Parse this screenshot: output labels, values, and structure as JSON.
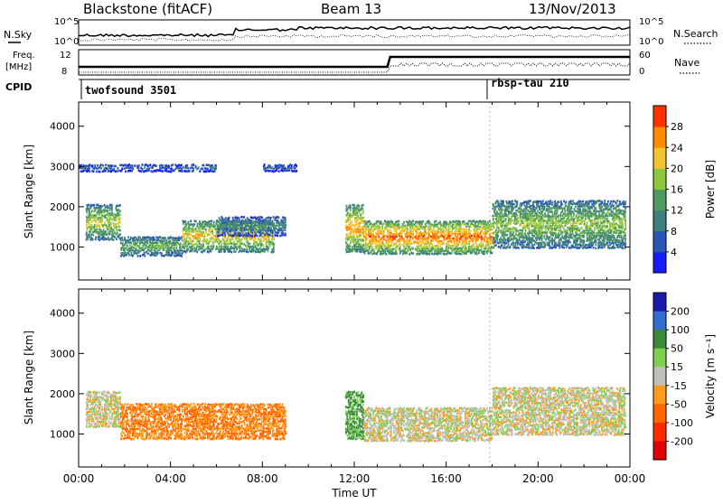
{
  "header": {
    "station": "Blackstone (fitACF)",
    "beam": "Beam 13",
    "date": "13/Nov/2013"
  },
  "noise_panel": {
    "left_label": "N.Sky",
    "right_label": "N.Search",
    "yticks_left": [
      "10^5",
      "10^0"
    ],
    "yticks_right": [
      "10^5",
      "10^0"
    ]
  },
  "freq_panel": {
    "left_label_1": "Freq.",
    "left_label_2": "[MHz]",
    "right_label": "Nave",
    "yticks_left": [
      "12",
      "8"
    ],
    "yticks_right": [
      "60",
      "0"
    ]
  },
  "cpid": {
    "label": "CPID",
    "programs": [
      {
        "name": "twofsound 3501",
        "start_hour": 0
      },
      {
        "name": "rbsp-tau 210",
        "start_hour": 18
      }
    ]
  },
  "chart_data": [
    {
      "type": "heatmap",
      "panel": "power",
      "xlabel": "",
      "ylabel": "Slant Range [km]",
      "xlim": [
        0,
        24
      ],
      "ylim": [
        180,
        4600
      ],
      "yticks": [
        1000,
        2000,
        3000,
        4000
      ],
      "colorbar": {
        "label": "Power [dB]",
        "range": [
          0,
          32
        ],
        "ticks": [
          4,
          8,
          12,
          16,
          20,
          24,
          28
        ],
        "colors": [
          "#1a1aff",
          "#2a56b8",
          "#3f7f7f",
          "#4f9a5e",
          "#8dc63f",
          "#f4c430",
          "#ff8c00",
          "#ff3300"
        ]
      },
      "echo_regions": [
        {
          "t0": 0.3,
          "t1": 1.8,
          "r0": 1200,
          "r1": 2100,
          "power": 18
        },
        {
          "t0": 1.8,
          "t1": 4.5,
          "r0": 800,
          "r1": 1300,
          "power": 14
        },
        {
          "t0": 4.5,
          "t1": 8.5,
          "r0": 900,
          "r1": 1700,
          "power": 20
        },
        {
          "t0": 6.0,
          "t1": 9.0,
          "r0": 1300,
          "r1": 1800,
          "power": 10
        },
        {
          "t0": 11.6,
          "t1": 12.4,
          "r0": 900,
          "r1": 2100,
          "power": 22
        },
        {
          "t0": 12.4,
          "t1": 18.0,
          "r0": 850,
          "r1": 1700,
          "power": 24
        },
        {
          "t0": 18.0,
          "t1": 23.8,
          "r0": 1000,
          "r1": 2200,
          "power": 16
        },
        {
          "t0": 0.0,
          "t1": 6.0,
          "r0": 2900,
          "r1": 3100,
          "power": 6
        },
        {
          "t0": 8.0,
          "t1": 9.5,
          "r0": 2900,
          "r1": 3100,
          "power": 6
        }
      ]
    },
    {
      "type": "heatmap",
      "panel": "velocity",
      "xlabel": "Time UT",
      "ylabel": "Slant Range [km]",
      "xlim": [
        0,
        24
      ],
      "ylim": [
        180,
        4600
      ],
      "yticks": [
        1000,
        2000,
        3000,
        4000
      ],
      "xticks": [
        "00:00",
        "04:00",
        "08:00",
        "12:00",
        "16:00",
        "20:00",
        "00:00"
      ],
      "colorbar": {
        "label": "Velocity [m s⁻¹]",
        "ticks": [
          200,
          100,
          50,
          15,
          -15,
          -50,
          -100,
          -200
        ],
        "colors": [
          "#1a1aaa",
          "#2f6fd0",
          "#3a8a3a",
          "#7fd04f",
          "#c0c0b8",
          "#ff9a1a",
          "#ff6600",
          "#ff2a00",
          "#e00000"
        ]
      },
      "echo_regions": [
        {
          "t0": 0.3,
          "t1": 1.8,
          "r0": 1200,
          "r1": 2100,
          "velocity": 0
        },
        {
          "t0": 1.8,
          "t1": 9.0,
          "r0": 900,
          "r1": 1800,
          "velocity": -50
        },
        {
          "t0": 11.6,
          "t1": 12.4,
          "r0": 900,
          "r1": 2100,
          "velocity": 60
        },
        {
          "t0": 12.4,
          "t1": 18.0,
          "r0": 850,
          "r1": 1700,
          "velocity": 0
        },
        {
          "t0": 18.0,
          "t1": 23.8,
          "r0": 1000,
          "r1": 2200,
          "velocity": 0
        }
      ]
    }
  ]
}
